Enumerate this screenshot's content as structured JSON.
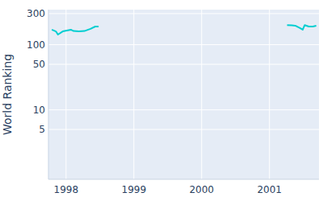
{
  "chart_data": {
    "type": "line",
    "y_label": "World Ranking",
    "x": [
      1997.79,
      1997.85,
      1997.88,
      1997.95,
      1998.07,
      1998.11,
      1998.19,
      1998.27,
      1998.36,
      1998.43,
      1998.48,
      null,
      2001.26,
      2001.33,
      2001.38,
      2001.45,
      2001.49,
      2001.52,
      2001.58,
      2001.64,
      2001.69
    ],
    "values": [
      170,
      160,
      143,
      160,
      170,
      162,
      160,
      162,
      175,
      190,
      190,
      null,
      200,
      198,
      196,
      180,
      170,
      200,
      190,
      190,
      195
    ],
    "color": "#00ced1",
    "log": "y",
    "grid": true,
    "xlim": [
      1997.74,
      2001.73
    ],
    "xticks": [
      1998,
      1999,
      2000,
      2001
    ],
    "ylim": [
      0.86,
      345
    ],
    "yticks": [
      5,
      10,
      50,
      100,
      300
    ]
  }
}
